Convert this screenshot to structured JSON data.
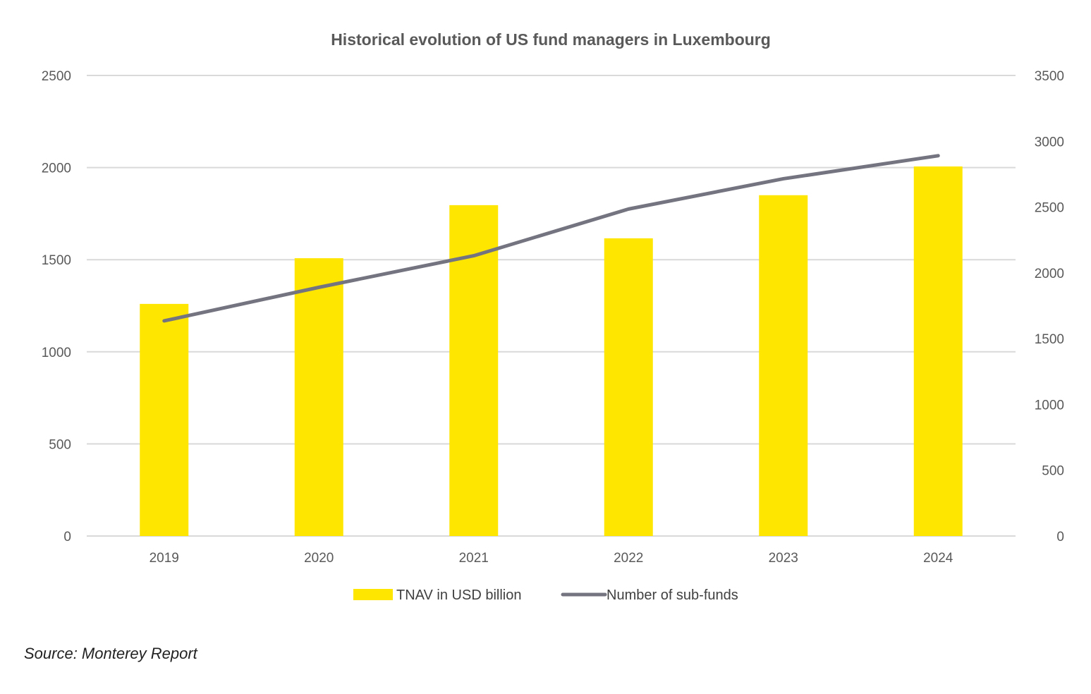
{
  "chart_data": {
    "type": "bar+line",
    "title": "Historical evolution of US fund managers in Luxembourg",
    "categories": [
      "2019",
      "2020",
      "2021",
      "2022",
      "2023",
      "2024"
    ],
    "series": [
      {
        "name": "TNAV in USD billion",
        "type": "bar",
        "axis": "left",
        "color": "#FFE600",
        "values": [
          1260,
          1508,
          1796,
          1616,
          1850,
          2006
        ]
      },
      {
        "name": "Number of sub-funds",
        "type": "line",
        "axis": "right",
        "color": "#747480",
        "values": [
          1635,
          1890,
          2130,
          2485,
          2715,
          2890
        ]
      }
    ],
    "y_left": {
      "ylim": [
        0,
        2500
      ],
      "ticks": [
        "0",
        "500",
        "1000",
        "1500",
        "2000",
        "2500"
      ]
    },
    "y_right": {
      "ylim": [
        0,
        3500
      ],
      "ticks": [
        "0",
        "500",
        "1000",
        "1500",
        "2000",
        "2500",
        "3000",
        "3500"
      ]
    },
    "grid": true,
    "legend": "bottom"
  },
  "source": "Source: Monterey Report"
}
